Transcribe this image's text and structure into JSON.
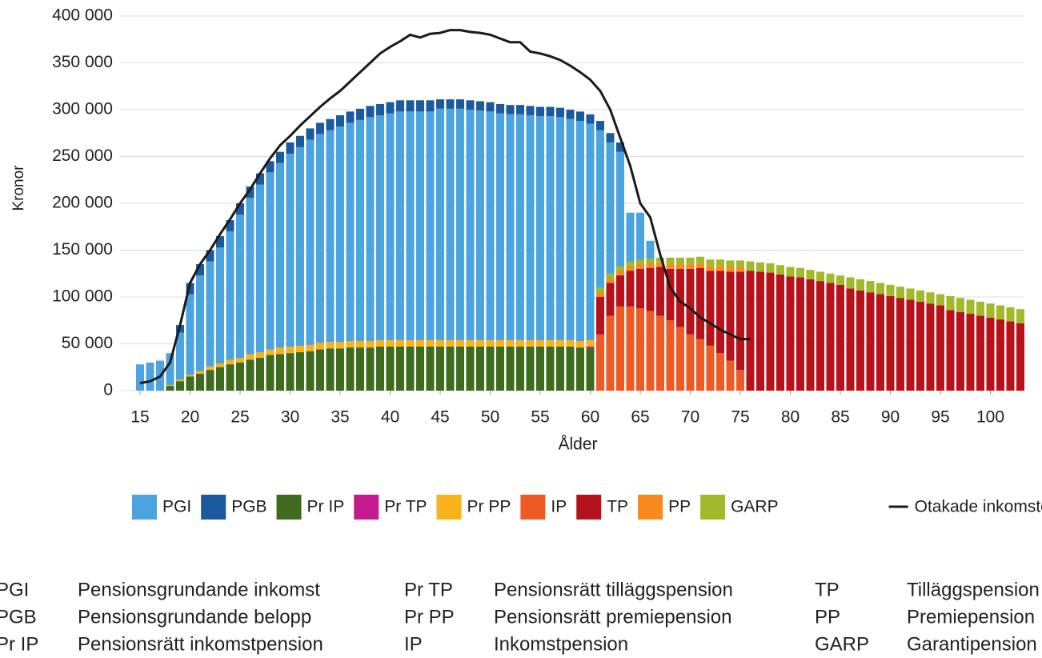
{
  "chart_data": {
    "type": "bar",
    "xlabel": "Ålder",
    "ylabel": "Kronor",
    "x": [
      15,
      16,
      17,
      18,
      19,
      20,
      21,
      22,
      23,
      24,
      25,
      26,
      27,
      28,
      29,
      30,
      31,
      32,
      33,
      34,
      35,
      36,
      37,
      38,
      39,
      40,
      41,
      42,
      43,
      44,
      45,
      46,
      47,
      48,
      49,
      50,
      51,
      52,
      53,
      54,
      55,
      56,
      57,
      58,
      59,
      60,
      61,
      62,
      63,
      64,
      65,
      66,
      67,
      68,
      69,
      70,
      71,
      72,
      73,
      74,
      75,
      76,
      77,
      78,
      79,
      80,
      81,
      82,
      83,
      84,
      85,
      86,
      87,
      88,
      89,
      90,
      91,
      92,
      93,
      94,
      95,
      96,
      97,
      98,
      99,
      100,
      101,
      102,
      103
    ],
    "xlim": [
      13,
      103.4
    ],
    "xticks": [
      15,
      20,
      25,
      30,
      35,
      40,
      45,
      50,
      55,
      60,
      65,
      70,
      75,
      80,
      85,
      90,
      95,
      100
    ],
    "ylim": [
      0,
      400000
    ],
    "yticks": [
      0,
      {
        "value": 50000,
        "label": "50 000"
      },
      {
        "value": 100000,
        "label": "100 000"
      },
      {
        "value": 150000,
        "label": "150 000"
      },
      {
        "value": 200000,
        "label": "200 000"
      },
      {
        "value": 250000,
        "label": "250 000"
      },
      {
        "value": 300000,
        "label": "300 000"
      },
      {
        "value": 350000,
        "label": "350 000"
      },
      {
        "value": 400000,
        "label": "400 000"
      }
    ],
    "grid": true,
    "legend": "bottom",
    "series": [
      {
        "name": "PGI",
        "color": "#4ba3e0",
        "stack": 0,
        "values": [
          28000,
          30000,
          32000,
          40000,
          62000,
          103000,
          123000,
          138000,
          153000,
          170000,
          188000,
          206000,
          220000,
          233000,
          243000,
          253000,
          260000,
          268000,
          274000,
          278000,
          282000,
          286000,
          289000,
          292000,
          294000,
          296000,
          298000,
          298000,
          298000,
          298000,
          301000,
          301000,
          301000,
          300000,
          299000,
          298000,
          296000,
          295000,
          295000,
          294000,
          293000,
          293000,
          292000,
          290000,
          288000,
          285000,
          278000,
          265000,
          255000,
          190000,
          190000,
          160000,
          0,
          0,
          0,
          0,
          0,
          0,
          0,
          0,
          0,
          0,
          0,
          0,
          0,
          0,
          0,
          0,
          0,
          0,
          0,
          0,
          0,
          0,
          0,
          0,
          0,
          0,
          0,
          0,
          0,
          0,
          0,
          0,
          0,
          0,
          0,
          0,
          0
        ]
      },
      {
        "name": "PGB",
        "color": "#1b5a9c",
        "stack": 0,
        "values": [
          0,
          0,
          0,
          0,
          8000,
          12000,
          12000,
          12000,
          12000,
          12000,
          12000,
          12000,
          12000,
          12000,
          12000,
          12000,
          12000,
          12000,
          12000,
          12000,
          12000,
          12000,
          12000,
          12000,
          12000,
          12000,
          12000,
          12000,
          12000,
          12000,
          10000,
          10000,
          10000,
          10000,
          10000,
          10000,
          10000,
          10000,
          10000,
          10000,
          10000,
          10000,
          10000,
          10000,
          10000,
          10000,
          10000,
          10000,
          10000,
          0,
          0,
          0,
          0,
          0,
          0,
          0,
          0,
          0,
          0,
          0,
          0,
          0,
          0,
          0,
          0,
          0,
          0,
          0,
          0,
          0,
          0,
          0,
          0,
          0,
          0,
          0,
          0,
          0,
          0,
          0,
          0,
          0,
          0,
          0,
          0,
          0,
          0,
          0,
          0
        ]
      },
      {
        "name": "Pr IP",
        "color": "#3e6b1e",
        "stack": 1,
        "values": [
          0,
          0,
          0,
          5000,
          10000,
          15000,
          18000,
          22000,
          25000,
          28000,
          30000,
          33000,
          35000,
          38000,
          39000,
          40000,
          41000,
          42000,
          44000,
          45000,
          45000,
          46000,
          46000,
          46000,
          47000,
          47000,
          47000,
          47000,
          47000,
          47000,
          47000,
          47000,
          47000,
          47000,
          47000,
          47000,
          47000,
          47000,
          47000,
          47000,
          47000,
          47000,
          47000,
          47000,
          46000,
          45000,
          43000,
          40000,
          38000,
          0,
          0,
          0,
          0,
          0,
          0,
          0,
          0,
          0,
          0,
          0,
          0,
          0,
          0,
          0,
          0,
          0,
          0,
          0,
          0,
          0,
          0,
          0,
          0,
          0,
          0,
          0,
          0,
          0,
          0,
          0,
          0,
          0,
          0,
          0,
          0,
          0,
          0,
          0,
          0
        ]
      },
      {
        "name": "Pr TP",
        "color": "#c4198f",
        "stack": 1,
        "values": [
          0,
          0,
          0,
          0,
          0,
          0,
          0,
          0,
          0,
          0,
          0,
          0,
          0,
          0,
          0,
          0,
          0,
          0,
          0,
          0,
          0,
          0,
          0,
          0,
          0,
          0,
          0,
          0,
          0,
          0,
          0,
          0,
          0,
          0,
          0,
          0,
          0,
          0,
          0,
          0,
          0,
          0,
          0,
          0,
          0,
          2000,
          3000,
          3000,
          3000,
          0,
          0,
          0,
          0,
          0,
          0,
          0,
          0,
          0,
          0,
          0,
          0,
          0,
          0,
          0,
          0,
          0,
          0,
          0,
          0,
          0,
          0,
          0,
          0,
          0,
          0,
          0,
          0,
          0,
          0,
          0,
          0,
          0,
          0,
          0,
          0,
          0,
          0,
          0,
          0
        ]
      },
      {
        "name": "Pr PP",
        "color": "#f9b21b",
        "stack": 1,
        "values": [
          0,
          0,
          0,
          1000,
          2000,
          2000,
          3000,
          4000,
          4000,
          5000,
          5000,
          6000,
          6000,
          6000,
          7000,
          7000,
          7000,
          7000,
          7000,
          7000,
          7000,
          7000,
          7000,
          7000,
          7000,
          7000,
          7000,
          7000,
          7000,
          7000,
          7000,
          7000,
          7000,
          7000,
          7000,
          7000,
          7000,
          7000,
          7000,
          7000,
          7000,
          7000,
          7000,
          7000,
          7000,
          7000,
          6000,
          6000,
          5000,
          0,
          0,
          0,
          0,
          0,
          0,
          0,
          0,
          0,
          0,
          0,
          0,
          0,
          0,
          0,
          0,
          0,
          0,
          0,
          0,
          0,
          0,
          0,
          0,
          0,
          0,
          0,
          0,
          0,
          0,
          0,
          0,
          0,
          0,
          0,
          0,
          0,
          0,
          0,
          0
        ]
      },
      {
        "name": "IP",
        "color": "#ee5a24",
        "stack": 2,
        "values": [
          0,
          0,
          0,
          0,
          0,
          0,
          0,
          0,
          0,
          0,
          0,
          0,
          0,
          0,
          0,
          0,
          0,
          0,
          0,
          0,
          0,
          0,
          0,
          0,
          0,
          0,
          0,
          0,
          0,
          0,
          0,
          0,
          0,
          0,
          0,
          0,
          0,
          0,
          0,
          0,
          0,
          0,
          0,
          0,
          0,
          0,
          60000,
          80000,
          90000,
          90000,
          88000,
          85000,
          80000,
          75000,
          68000,
          60000,
          55000,
          48000,
          40000,
          32000,
          22000,
          0,
          0,
          0,
          0,
          0,
          0,
          0,
          0,
          0,
          0,
          0,
          0,
          0,
          0,
          0,
          0,
          0,
          0,
          0,
          0,
          0,
          0,
          0,
          0,
          0,
          0,
          0,
          0
        ]
      },
      {
        "name": "TP",
        "color": "#b5121b",
        "stack": 2,
        "values": [
          0,
          0,
          0,
          0,
          0,
          0,
          0,
          0,
          0,
          0,
          0,
          0,
          0,
          0,
          0,
          0,
          0,
          0,
          0,
          0,
          0,
          0,
          0,
          0,
          0,
          0,
          0,
          0,
          0,
          0,
          0,
          0,
          0,
          0,
          0,
          0,
          0,
          0,
          0,
          0,
          0,
          0,
          0,
          0,
          0,
          0,
          40000,
          35000,
          33000,
          38000,
          42000,
          46000,
          52000,
          55000,
          62000,
          70000,
          76000,
          80000,
          88000,
          95000,
          105000,
          128000,
          127000,
          126000,
          124000,
          122000,
          121000,
          119000,
          117000,
          115000,
          113000,
          109000,
          107000,
          105000,
          103000,
          101000,
          99000,
          97000,
          95000,
          93000,
          91000,
          86000,
          84000,
          82000,
          80000,
          78000,
          76000,
          74000,
          72000
        ]
      },
      {
        "name": "PP",
        "color": "#f7891f",
        "stack": 2,
        "values": [
          0,
          0,
          0,
          0,
          0,
          0,
          0,
          0,
          0,
          0,
          0,
          0,
          0,
          0,
          0,
          0,
          0,
          0,
          0,
          0,
          0,
          0,
          0,
          0,
          0,
          0,
          0,
          0,
          0,
          0,
          0,
          0,
          0,
          0,
          0,
          0,
          0,
          0,
          0,
          0,
          0,
          0,
          0,
          0,
          0,
          0,
          5000,
          5000,
          5000,
          5000,
          5000,
          5000,
          5000,
          5000,
          5000,
          5000,
          5000,
          5000,
          5000,
          5000,
          5000,
          0,
          0,
          0,
          0,
          0,
          0,
          0,
          0,
          0,
          0,
          0,
          0,
          0,
          0,
          0,
          0,
          0,
          0,
          0,
          0,
          0,
          0,
          0,
          0,
          0,
          0,
          0,
          0
        ]
      },
      {
        "name": "GARP",
        "color": "#a2b92a",
        "stack": 2,
        "values": [
          0,
          0,
          0,
          0,
          0,
          0,
          0,
          0,
          0,
          0,
          0,
          0,
          0,
          0,
          0,
          0,
          0,
          0,
          0,
          0,
          0,
          0,
          0,
          0,
          0,
          0,
          0,
          0,
          0,
          0,
          0,
          0,
          0,
          0,
          0,
          0,
          0,
          0,
          0,
          0,
          0,
          0,
          0,
          0,
          0,
          0,
          5000,
          5000,
          5000,
          5000,
          5000,
          5000,
          5000,
          7000,
          7000,
          7000,
          7000,
          7000,
          7000,
          7000,
          7000,
          10000,
          10000,
          10000,
          10000,
          10000,
          10000,
          10000,
          10000,
          10000,
          10000,
          12000,
          12000,
          12000,
          12000,
          12000,
          12000,
          12000,
          12000,
          12000,
          12000,
          15000,
          15000,
          15000,
          15000,
          15000,
          15000,
          15000,
          15000
        ]
      },
      {
        "name": "Otakade inkomster",
        "color": "#1a1a1a",
        "type": "line",
        "values": [
          8000,
          10000,
          15000,
          30000,
          70000,
          115000,
          135000,
          150000,
          167000,
          183000,
          200000,
          215000,
          232000,
          248000,
          262000,
          272000,
          283000,
          293000,
          303000,
          312000,
          320000,
          330000,
          340000,
          350000,
          360000,
          367000,
          373000,
          380000,
          377000,
          381000,
          382000,
          385000,
          385000,
          383000,
          382000,
          380000,
          376000,
          372000,
          372000,
          362000,
          360000,
          357000,
          353000,
          347000,
          340000,
          332000,
          320000,
          300000,
          270000,
          240000,
          200000,
          185000,
          145000,
          110000,
          95000,
          88000,
          78000,
          72000,
          65000,
          60000,
          55000,
          55000,
          null,
          null,
          null,
          null,
          null,
          null,
          null,
          null,
          null,
          null,
          null,
          null,
          null,
          null,
          null,
          null,
          null,
          null,
          null,
          null,
          null,
          null,
          null,
          null,
          null,
          null,
          null
        ]
      }
    ]
  },
  "glossary": [
    {
      "abbr": "PGI",
      "text": "Pensionsgrundande inkomst"
    },
    {
      "abbr": "PGB",
      "text": "Pensionsgrundande belopp"
    },
    {
      "abbr": "Pr IP",
      "text": "Pensionsrätt inkomstpension"
    },
    {
      "abbr": "Pr TP",
      "text": "Pensionsrätt tilläggspension"
    },
    {
      "abbr": "Pr PP",
      "text": "Pensionsrätt premiepension"
    },
    {
      "abbr": "IP",
      "text": "Inkomstpension"
    },
    {
      "abbr": "TP",
      "text": "Tilläggspension"
    },
    {
      "abbr": "PP",
      "text": "Premiepension"
    },
    {
      "abbr": "GARP",
      "text": "Garantipension"
    }
  ]
}
